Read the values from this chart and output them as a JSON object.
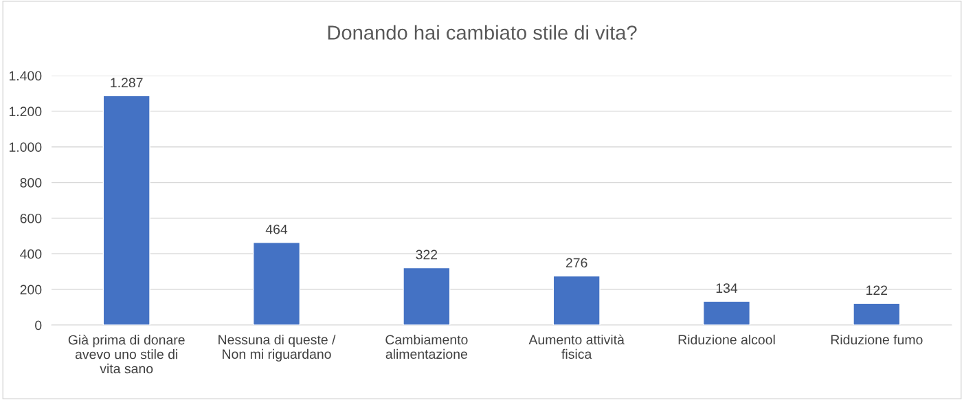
{
  "chart_data": {
    "type": "bar",
    "title": "Donando hai cambiato stile di vita?",
    "categories": [
      "Già prima di donare avevo uno stile di vita sano",
      "Nessuna di queste / Non mi riguardano",
      "Cambiamento alimentazione",
      "Aumento attività fisica",
      "Riduzione alcool",
      "Riduzione fumo"
    ],
    "values": [
      1287,
      464,
      322,
      276,
      134,
      122
    ],
    "value_labels": [
      "1.287",
      "464",
      "322",
      "276",
      "134",
      "122"
    ],
    "color": "#4472c4",
    "ylim": [
      0,
      1400
    ],
    "yticks": [
      0,
      200,
      400,
      600,
      800,
      {
        "value": 1000,
        "label": "1.000"
      },
      {
        "value": 1200,
        "label": "1.200"
      },
      {
        "value": 1400,
        "label": "1.400"
      }
    ],
    "grid": "y",
    "legend": false
  }
}
